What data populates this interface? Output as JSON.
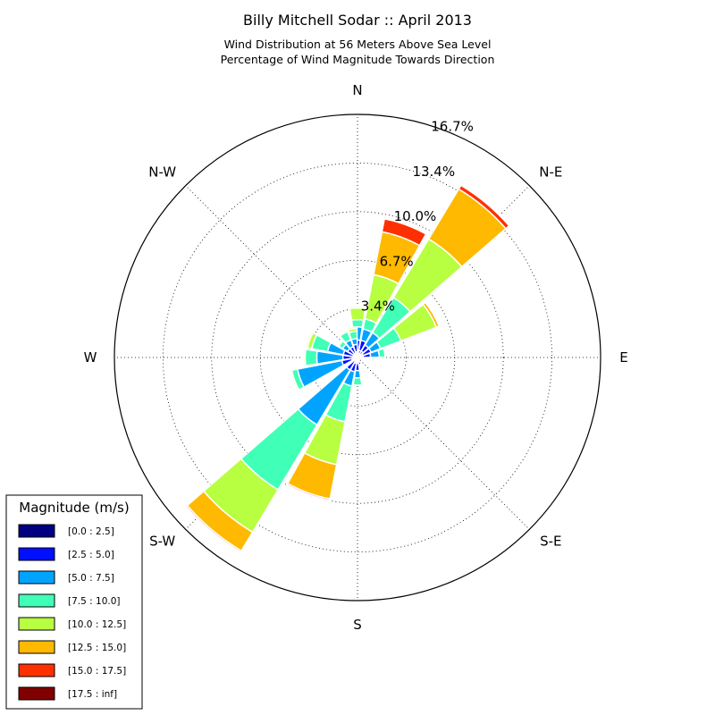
{
  "chart_data": {
    "type": "windrose",
    "title": "Billy Mitchell Sodar :: April 2013",
    "subtitle_lines": [
      "Wind Distribution at 56 Meters Above Sea Level",
      "Percentage of Wind Magnitude Towards Direction"
    ],
    "directions": [
      "N",
      "N-E",
      "E",
      "S-E",
      "S",
      "S-W",
      "W",
      "N-W"
    ],
    "radial_labels": [
      "3.4%",
      "6.7%",
      "10.0%",
      "13.4%",
      "16.7%"
    ],
    "radial_ticks": [
      3.34,
      6.68,
      10.02,
      13.36
    ],
    "rmax": 16.7,
    "legend": {
      "title": "Magnitude (m/s)",
      "placement": "lower-left",
      "entries": [
        "[0.0 : 2.5]",
        "[2.5 : 5.0]",
        "[5.0 : 7.5]",
        "[7.5 : 10.0]",
        "[10.0 : 12.5]",
        "[12.5 : 15.0]",
        "[15.0 : 17.5]",
        "[17.5 : inf]"
      ]
    },
    "bin_colors": [
      "#000080",
      "#0010ff",
      "#00a4ff",
      "#40ffb7",
      "#b7ff40",
      "#ffb900",
      "#ff3000",
      "#800000"
    ],
    "sector_width_deg": 20,
    "sectors": [
      {
        "dir_deg": 0,
        "cumulative": [
          0.5,
          1.2,
          2.1,
          2.6,
          3.4,
          3.5
        ]
      },
      {
        "dir_deg": 20,
        "cumulative": [
          0.5,
          1.2,
          2.0,
          2.7,
          5.8,
          8.8,
          9.7
        ]
      },
      {
        "dir_deg": 40,
        "cumulative": [
          0.5,
          1.0,
          2.0,
          4.8,
          9.5,
          13.5,
          13.8
        ]
      },
      {
        "dir_deg": 60,
        "cumulative": [
          0.4,
          1.0,
          1.7,
          3.2,
          5.8,
          6.0
        ]
      },
      {
        "dir_deg": 80,
        "cumulative": [
          0.4,
          0.9,
          1.5,
          1.9
        ]
      },
      {
        "dir_deg": 160,
        "cumulative": [
          0.3,
          0.5
        ]
      },
      {
        "dir_deg": 180,
        "cumulative": [
          0.4,
          0.9,
          1.4,
          1.9
        ]
      },
      {
        "dir_deg": 200,
        "cumulative": [
          0.4,
          1.0,
          2.0,
          4.5,
          7.5,
          9.9,
          10.0
        ]
      },
      {
        "dir_deg": 220,
        "cumulative": [
          0.3,
          1.0,
          5.4,
          10.6,
          14.0,
          15.5,
          15.6
        ]
      },
      {
        "dir_deg": 250,
        "cumulative": [
          0.4,
          1.1,
          4.2,
          4.6,
          4.7
        ]
      },
      {
        "dir_deg": 270,
        "cumulative": [
          0.3,
          1.0,
          2.8,
          3.6,
          3.7
        ]
      },
      {
        "dir_deg": 290,
        "cumulative": [
          0.3,
          1.0,
          2.1,
          3.2,
          3.5,
          3.6
        ]
      },
      {
        "dir_deg": 310,
        "cumulative": [
          0.3,
          0.8,
          1.2,
          1.5,
          1.6
        ]
      },
      {
        "dir_deg": 330,
        "cumulative": [
          0.3,
          0.8,
          1.3,
          1.9,
          2.0
        ]
      },
      {
        "dir_deg": 350,
        "cumulative": [
          0.4,
          0.9,
          1.3,
          1.8,
          2.0,
          2.1
        ]
      }
    ]
  }
}
